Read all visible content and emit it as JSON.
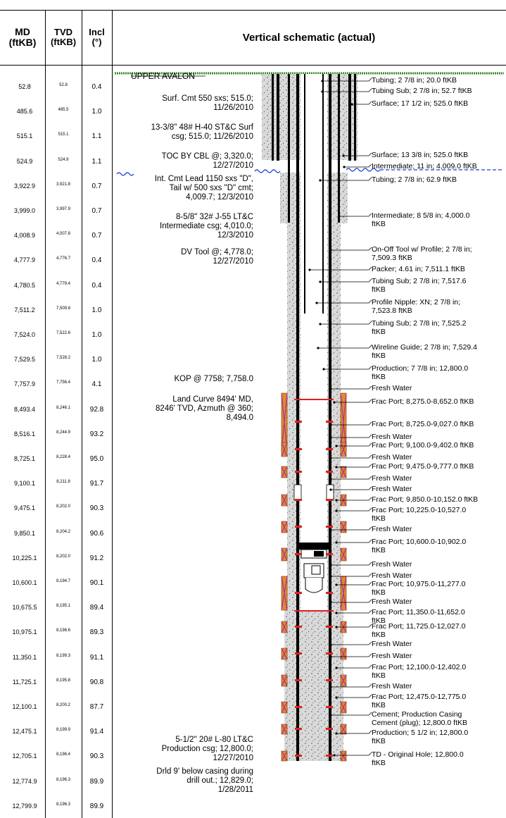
{
  "headers": {
    "md": "MD (ftKB)",
    "tvd": "TVD (ftKB)",
    "incl": "Incl (°)",
    "schematic": "Vertical schematic (actual)"
  },
  "formation_top": "UPPER AVALON",
  "survey_rows": [
    {
      "md": "52.8",
      "tvd": "52.8",
      "incl": "0.4"
    },
    {
      "md": "485.6",
      "tvd": "485.5",
      "incl": "1.0"
    },
    {
      "md": "515.1",
      "tvd": "515.1",
      "incl": "1.1"
    },
    {
      "md": "524.9",
      "tvd": "524.9",
      "incl": "1.1"
    },
    {
      "md": "3,922.9",
      "tvd": "3,921.8",
      "incl": "0.7"
    },
    {
      "md": "3,999.0",
      "tvd": "3,997.9",
      "incl": "0.7"
    },
    {
      "md": "4,008.9",
      "tvd": "4,007.8",
      "incl": "0.7"
    },
    {
      "md": "4,777.9",
      "tvd": "4,776.7",
      "incl": "0.4"
    },
    {
      "md": "4,780.5",
      "tvd": "4,779.4",
      "incl": "0.4"
    },
    {
      "md": "7,511.2",
      "tvd": "7,509.8",
      "incl": "1.0"
    },
    {
      "md": "7,524.0",
      "tvd": "7,522.6",
      "incl": "1.0"
    },
    {
      "md": "7,529.5",
      "tvd": "7,528.2",
      "incl": "1.0"
    },
    {
      "md": "7,757.9",
      "tvd": "7,756.4",
      "incl": "4.1"
    },
    {
      "md": "8,493.4",
      "tvd": "8,246.1",
      "incl": "92.8"
    },
    {
      "md": "8,516.1",
      "tvd": "8,244.9",
      "incl": "93.2"
    },
    {
      "md": "8,725.1",
      "tvd": "8,228.4",
      "incl": "95.0"
    },
    {
      "md": "9,100.1",
      "tvd": "8,211.8",
      "incl": "91.7"
    },
    {
      "md": "9,475.1",
      "tvd": "8,202.0",
      "incl": "90.3"
    },
    {
      "md": "9,850.1",
      "tvd": "8,204.2",
      "incl": "90.6"
    },
    {
      "md": "10,225.1",
      "tvd": "8,202.0",
      "incl": "91.2"
    },
    {
      "md": "10,600.1",
      "tvd": "8,194.7",
      "incl": "90.1"
    },
    {
      "md": "10,675.5",
      "tvd": "8,195.1",
      "incl": "89.4"
    },
    {
      "md": "10,975.1",
      "tvd": "8,198.6",
      "incl": "89.3"
    },
    {
      "md": "11,350.1",
      "tvd": "8,199.3",
      "incl": "91.1"
    },
    {
      "md": "11,725.1",
      "tvd": "8,195.8",
      "incl": "90.8"
    },
    {
      "md": "12,100.1",
      "tvd": "8,200.2",
      "incl": "87.7"
    },
    {
      "md": "12,475.1",
      "tvd": "8,199.9",
      "incl": "91.4"
    },
    {
      "md": "12,705.1",
      "tvd": "8,196.4",
      "incl": "90.3"
    },
    {
      "md": "12,774.9",
      "tvd": "8,196.3",
      "incl": "89.9"
    },
    {
      "md": "12,799.9",
      "tvd": "8,196.3",
      "incl": "89.9"
    }
  ],
  "left_labels": [
    "Surf. Cmt 550 sxs; 515.0;\n11/26/2010",
    "13-3/8\" 48# H-40 ST&C Surf\ncsg; 515.0; 11/26/2010",
    "TOC BY CBL @; 3,320.0;\n12/27/2010",
    "Int. Cmt Lead 1150 sxs \"D\",\nTail w/ 500 sxs \"D\" cmt;\n4,009.7; 12/3/2010",
    "8-5/8\" 32# J-55 LT&C\nIntermediate csg; 4,010.0;\n12/3/2010",
    "DV Tool @; 4,778.0;\n12/27/2010",
    "KOP @ 7758; 7,758.0",
    "Land Curve 8494' MD,\n8246' TVD, Azmuth @ 360;\n8,494.0",
    "5-1/2\" 20# L-80 LT&C\nProduction csg; 12,800.0;\n12/27/2010",
    "Drld 9' below casing during\ndrill out.; 12,829.0;\n1/28/2011"
  ],
  "right_labels": [
    "Tubing; 2 7/8 in; 20.0 ftKB",
    "Tubing Sub; 2 7/8 in; 52.7 ftKB",
    "Surface; 17 1/2 in; 525.0 ftKB",
    "Surface; 13 3/8 in; 525.0 ftKB",
    "Intermediate; 11 in; 4,009.0 ftKB",
    "Tubing; 2 7/8 in; 62.9 ftKB",
    "Intermediate; 8 5/8 in; 4,000.0\nftKB",
    "On-Off Tool w/ Profile; 2 7/8 in;\n7,509.3 ftKB",
    "Packer; 4.61 in; 7,511.1 ftKB",
    "Tubing Sub; 2 7/8 in; 7,517.6\nftKB",
    "Profile Nipple: XN; 2 7/8 in;\n7,523.8 ftKB",
    "Tubing Sub; 2 7/8 in; 7,525.2\nftKB",
    "Wireline Guide; 2 7/8 in; 7,529.4\nftKB",
    "Production; 7 7/8 in; 12,800.0\nftKB",
    "Fresh Water",
    "Frac Port; 8,275.0-8,652.0 ftKB",
    "Frac Port; 8,725.0-9,027.0 ftKB",
    "Fresh Water",
    "Frac Port; 9,100.0-9,402.0 ftKB",
    "Fresh Water",
    "Frac Port; 9,475.0-9,777.0 ftKB",
    "Fresh Water",
    "Fresh Water",
    "Frac Port; 9,850.0-10,152.0 ftKB",
    "Frac Port; 10,225.0-10,527.0\nftKB",
    "Fresh Water",
    "Frac Port; 10,600.0-10,902.0\nftKB",
    "Fresh Water",
    "Fresh Water",
    "Frac Port; 10,975.0-11,277.0\nftKB",
    "Fresh Water",
    "Frac Port; 11,350.0-11,652.0\nftKB",
    "Frac Port; 11,725.0-12,027.0\nftKB",
    "Fresh Water",
    "Fresh Water",
    "Frac Port; 12,100.0-12,402.0\nftKB",
    "Fresh Water",
    "Frac Port; 12,475.0-12,775.0\nftKB",
    "Cement; Production Casing\nCement (plug); 12,800.0 ftKB",
    "Production; 5 1/2 in; 12,800.0\nftKB",
    "TD - Original Hole; 12,800.0\nftKB"
  ],
  "colors": {
    "cement": "#d8d8d8",
    "formation": "#3a8a2a",
    "marker": "#1f3fd0",
    "frac_port": "#e08a2a",
    "frac_ball": "#b0309a",
    "seal": "#e02020"
  }
}
